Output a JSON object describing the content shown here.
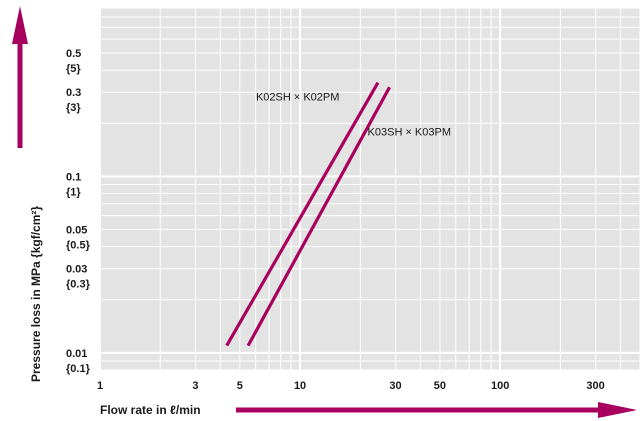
{
  "colors": {
    "plot_background": "#e3e3e3",
    "grid": "#ffffff",
    "series": "#a8005f",
    "axis_arrow": "#a8005f",
    "text": "#1a1a1a"
  },
  "chart_data": {
    "type": "line",
    "x_scale": "log",
    "y_scale": "log",
    "xlim": [
      1,
      500
    ],
    "ylim": [
      0.008,
      0.9
    ],
    "grid": true,
    "xlabel": "Flow rate in ℓ/min",
    "ylabel": "Pressure loss in MPa {kgf/cm²}",
    "x_ticks": [
      {
        "value": 1,
        "label": "1"
      },
      {
        "value": 3,
        "label": "3"
      },
      {
        "value": 5,
        "label": "5"
      },
      {
        "value": 10,
        "label": "10"
      },
      {
        "value": 30,
        "label": "30"
      },
      {
        "value": 50,
        "label": "50"
      },
      {
        "value": 100,
        "label": "100"
      },
      {
        "value": 300,
        "label": "300"
      }
    ],
    "y_ticks": [
      {
        "value": 0.5,
        "label": "0.5",
        "sublabel": "{5}"
      },
      {
        "value": 0.3,
        "label": "0.3",
        "sublabel": "{3}"
      },
      {
        "value": 0.1,
        "label": "0.1",
        "sublabel": "{1}"
      },
      {
        "value": 0.05,
        "label": "0.05",
        "sublabel": "{0.5}"
      },
      {
        "value": 0.03,
        "label": "0.03",
        "sublabel": "{0.3}"
      },
      {
        "value": 0.01,
        "label": "0.01",
        "sublabel": "{0.1}"
      }
    ],
    "series": [
      {
        "name": "K02SH × K02PM",
        "x": [
          4.3,
          24.5
        ],
        "y": [
          0.011,
          0.34
        ]
      },
      {
        "name": "K03SH × K03PM",
        "x": [
          5.5,
          28.0
        ],
        "y": [
          0.011,
          0.32
        ]
      }
    ]
  }
}
